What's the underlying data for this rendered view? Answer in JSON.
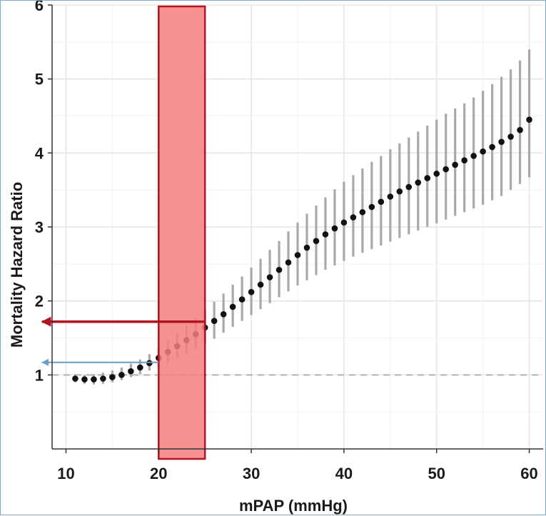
{
  "chart_data": {
    "type": "scatter",
    "title": "",
    "xlabel": "mPAP (mmHg)",
    "ylabel": "Mortality Hazard Ratio",
    "xlim": [
      8.5,
      61.5
    ],
    "ylim": [
      0,
      6
    ],
    "x_ticks": [
      10,
      20,
      30,
      40,
      50,
      60
    ],
    "y_ticks": [
      1,
      2,
      3,
      4,
      5,
      6
    ],
    "x_tick_labels": [
      "10",
      "20",
      "30",
      "40",
      "50",
      "60"
    ],
    "y_tick_labels": [
      "1",
      "2",
      "3",
      "4",
      "5",
      "6"
    ],
    "grid": true,
    "reference_line": {
      "y": 1,
      "style": "dashed",
      "color": "#b0b0b0"
    },
    "highlight_band": {
      "x_from": 20,
      "x_to": 25,
      "fill": "#f47e7e",
      "stroke": "#b3121f"
    },
    "annotations": [
      {
        "type": "arrow",
        "y": 1.72,
        "x_from": 25,
        "direction": "left",
        "color": "#b3121f"
      },
      {
        "type": "arrow",
        "y": 1.17,
        "x_from": 20,
        "direction": "left",
        "color": "#6a9cc6"
      }
    ],
    "series": [
      {
        "point_color": "#111111",
        "errorbar_color": "#a9a9a9",
        "x": [
          11,
          12,
          13,
          14,
          15,
          16,
          17,
          18,
          19,
          20,
          21,
          22,
          23,
          24,
          25,
          26,
          27,
          28,
          29,
          30,
          31,
          32,
          33,
          34,
          35,
          36,
          37,
          38,
          39,
          40,
          41,
          42,
          43,
          44,
          45,
          46,
          47,
          48,
          49,
          50,
          51,
          52,
          53,
          54,
          55,
          56,
          57,
          58,
          59,
          60
        ],
        "y": [
          0.95,
          0.94,
          0.94,
          0.95,
          0.97,
          1.0,
          1.05,
          1.1,
          1.16,
          1.23,
          1.31,
          1.39,
          1.47,
          1.55,
          1.64,
          1.73,
          1.82,
          1.92,
          2.02,
          2.12,
          2.22,
          2.32,
          2.42,
          2.52,
          2.62,
          2.72,
          2.81,
          2.9,
          2.98,
          3.06,
          3.13,
          3.2,
          3.27,
          3.34,
          3.41,
          3.48,
          3.54,
          3.6,
          3.66,
          3.72,
          3.78,
          3.84,
          3.9,
          3.96,
          4.02,
          4.08,
          4.15,
          4.22,
          4.31,
          4.45
        ],
        "lower": [
          0.9,
          0.88,
          0.87,
          0.88,
          0.9,
          0.93,
          0.97,
          1.01,
          1.06,
          1.11,
          1.17,
          1.23,
          1.29,
          1.35,
          1.42,
          1.49,
          1.57,
          1.65,
          1.73,
          1.81,
          1.89,
          1.97,
          2.05,
          2.13,
          2.21,
          2.28,
          2.35,
          2.42,
          2.48,
          2.54,
          2.6,
          2.65,
          2.7,
          2.75,
          2.8,
          2.85,
          2.9,
          2.95,
          3.0,
          3.05,
          3.1,
          3.15,
          3.2,
          3.25,
          3.3,
          3.36,
          3.42,
          3.5,
          3.58,
          3.67
        ],
        "upper": [
          1.01,
          1.0,
          1.01,
          1.03,
          1.06,
          1.1,
          1.15,
          1.21,
          1.28,
          1.37,
          1.47,
          1.57,
          1.67,
          1.77,
          1.88,
          1.99,
          2.1,
          2.22,
          2.33,
          2.45,
          2.57,
          2.69,
          2.81,
          2.94,
          3.06,
          3.18,
          3.29,
          3.4,
          3.51,
          3.61,
          3.7,
          3.79,
          3.88,
          3.96,
          4.05,
          4.13,
          4.21,
          4.29,
          4.37,
          4.45,
          4.53,
          4.6,
          4.67,
          4.75,
          4.84,
          4.93,
          5.03,
          5.13,
          5.25,
          5.4
        ]
      }
    ]
  }
}
